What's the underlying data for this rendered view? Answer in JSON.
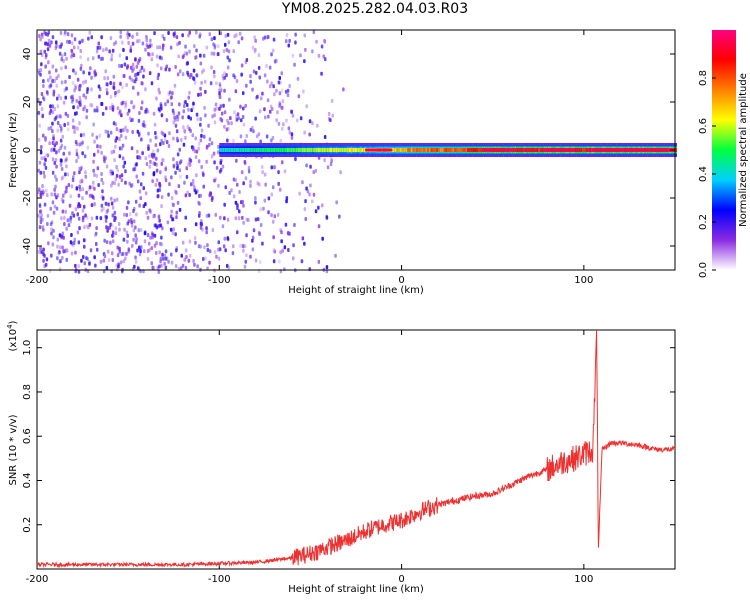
{
  "title": "YM08.2025.282.04.03.R03",
  "chart_data": [
    {
      "type": "heatmap",
      "title": "YM08.2025.282.04.03.R03",
      "xlabel": "Height of straight line (km)",
      "ylabel": "Frequency (Hz)",
      "xlim": [
        -200,
        150
      ],
      "ylim": [
        -50,
        50
      ],
      "x_ticks": [
        -200,
        -100,
        0,
        100
      ],
      "y_ticks": [
        -40,
        -20,
        0,
        20,
        40
      ],
      "colorbar": {
        "label": "Normalized spectral amplitude",
        "range": [
          0,
          1
        ],
        "ticks": [
          "0.0",
          "0.2",
          "0.4",
          "0.6",
          "0.8"
        ],
        "colors": [
          "#ffffff",
          "#8a2be2",
          "#0000ff",
          "#00d0ff",
          "#00ff40",
          "#ffff00",
          "#ff8000",
          "#ff0000",
          "#ff0080"
        ]
      },
      "regions": [
        {
          "name": "scattered noise",
          "x_range": [
            -200,
            -30
          ],
          "y_range": [
            -50,
            50
          ],
          "amplitude": 0.15
        },
        {
          "name": "signal line",
          "x_range": [
            -100,
            150
          ],
          "frequency": 0,
          "amplitude": [
            0.4,
            1.0
          ]
        },
        {
          "name": "strong signal",
          "x_range": [
            -20,
            150
          ],
          "frequency": 0,
          "amplitude": 0.95
        }
      ]
    },
    {
      "type": "line",
      "xlabel": "Height of straight line (km)",
      "ylabel": "SNR (10 * v/v)",
      "y_scale_label": "(x10",
      "y_scale_exp": "4",
      "xlim": [
        -200,
        150
      ],
      "ylim": [
        0,
        1.08
      ],
      "x_ticks": [
        -200,
        -100,
        0,
        100
      ],
      "y_ticks": [
        0.2,
        0.4,
        0.6,
        0.8,
        1.0
      ],
      "color": "#ee3030",
      "series": [
        {
          "x": [
            -200,
            -180,
            -160,
            -140,
            -120,
            -100,
            -80,
            -70,
            -60,
            -50,
            -40,
            -30,
            -20,
            -10,
            0,
            10,
            20,
            30,
            40,
            50,
            60,
            70,
            80,
            90,
            95,
            100,
            105,
            107,
            108,
            110,
            115,
            120,
            130,
            140,
            150
          ],
          "y": [
            0.02,
            0.02,
            0.02,
            0.02,
            0.02,
            0.025,
            0.03,
            0.04,
            0.05,
            0.07,
            0.1,
            0.13,
            0.17,
            0.2,
            0.22,
            0.26,
            0.29,
            0.31,
            0.33,
            0.34,
            0.38,
            0.42,
            0.45,
            0.49,
            0.5,
            0.52,
            0.54,
            1.06,
            0.1,
            0.54,
            0.57,
            0.57,
            0.56,
            0.54,
            0.54
          ]
        }
      ]
    }
  ]
}
